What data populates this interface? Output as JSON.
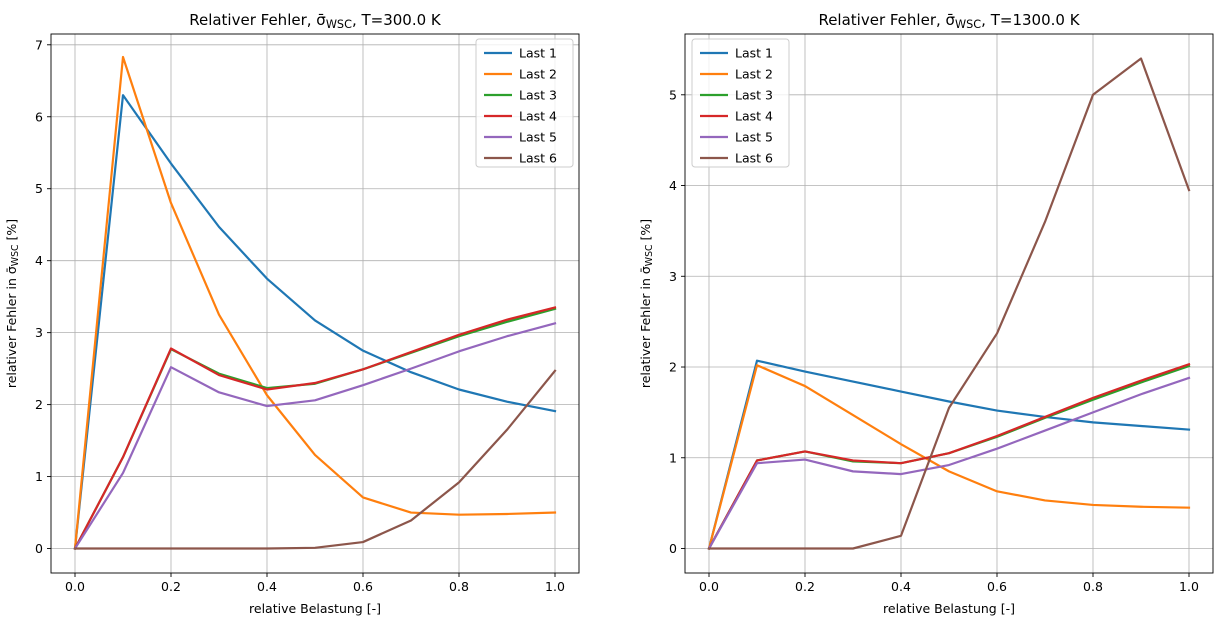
{
  "chart_data": [
    {
      "type": "line",
      "title": "Relativer Fehler, σ̄WSC, T=300.0 K",
      "title_parts": {
        "prefix": "Relativer Fehler, ",
        "symbol": "σ̄",
        "subscript": "WSC",
        "suffix": ", T=300.0 K"
      },
      "xlabel": "relative Belastung [-]",
      "ylabel": "relativer Fehler in σ̄WSC [%]",
      "ylabel_parts": {
        "prefix": "relativer Fehler in ",
        "symbol": "σ̄",
        "subscript": "WSC",
        "suffix": " [%]"
      },
      "x": [
        0.0,
        0.1,
        0.2,
        0.3,
        0.4,
        0.5,
        0.6,
        0.7,
        0.8,
        0.9,
        1.0
      ],
      "xlim": [
        -0.05,
        1.05
      ],
      "ylim": [
        -0.34,
        7.15
      ],
      "xticks": [
        0.0,
        0.2,
        0.4,
        0.6,
        0.8,
        1.0
      ],
      "xtick_labels": [
        "0.0",
        "0.2",
        "0.4",
        "0.6",
        "0.8",
        "1.0"
      ],
      "yticks": [
        0,
        1,
        2,
        3,
        4,
        5,
        6,
        7
      ],
      "ytick_labels": [
        "0",
        "1",
        "2",
        "3",
        "4",
        "5",
        "6",
        "7"
      ],
      "grid": true,
      "legend_position": "top-right",
      "series": [
        {
          "name": "Last 1",
          "color": "#1f77b4",
          "values": [
            0,
            6.3,
            5.35,
            4.47,
            3.75,
            3.17,
            2.75,
            2.45,
            2.21,
            2.04,
            1.91
          ]
        },
        {
          "name": "Last 2",
          "color": "#ff7f0e",
          "values": [
            0,
            6.83,
            4.8,
            3.25,
            2.13,
            1.3,
            0.71,
            0.5,
            0.47,
            0.48,
            0.5
          ]
        },
        {
          "name": "Last 3",
          "color": "#2ca02c",
          "values": [
            0,
            1.27,
            2.77,
            2.43,
            2.23,
            2.29,
            2.49,
            2.72,
            2.95,
            3.15,
            3.33
          ]
        },
        {
          "name": "Last 4",
          "color": "#d62728",
          "values": [
            0,
            1.27,
            2.78,
            2.41,
            2.21,
            2.3,
            2.49,
            2.73,
            2.97,
            3.18,
            3.35
          ]
        },
        {
          "name": "Last 5",
          "color": "#9467bd",
          "values": [
            0,
            1.05,
            2.52,
            2.17,
            1.98,
            2.06,
            2.27,
            2.5,
            2.74,
            2.95,
            3.13
          ]
        },
        {
          "name": "Last 6",
          "color": "#8c564b",
          "values": [
            0,
            0,
            0,
            0,
            0,
            0.01,
            0.09,
            0.39,
            0.92,
            1.65,
            2.47
          ]
        }
      ]
    },
    {
      "type": "line",
      "title": "Relativer Fehler, σ̄WSC, T=1300.0 K",
      "title_parts": {
        "prefix": "Relativer Fehler, ",
        "symbol": "σ̄",
        "subscript": "WSC",
        "suffix": ", T=1300.0 K"
      },
      "xlabel": "relative Belastung [-]",
      "ylabel": "relativer Fehler in σ̄WSC [%]",
      "ylabel_parts": {
        "prefix": "relativer Fehler in ",
        "symbol": "σ̄",
        "subscript": "WSC",
        "suffix": " [%]"
      },
      "x": [
        0.0,
        0.1,
        0.2,
        0.3,
        0.4,
        0.5,
        0.6,
        0.7,
        0.8,
        0.9,
        1.0
      ],
      "xlim": [
        -0.05,
        1.05
      ],
      "ylim": [
        -0.27,
        5.67
      ],
      "xticks": [
        0.0,
        0.2,
        0.4,
        0.6,
        0.8,
        1.0
      ],
      "xtick_labels": [
        "0.0",
        "0.2",
        "0.4",
        "0.6",
        "0.8",
        "1.0"
      ],
      "yticks": [
        0,
        1,
        2,
        3,
        4,
        5
      ],
      "ytick_labels": [
        "0",
        "1",
        "2",
        "3",
        "4",
        "5"
      ],
      "grid": true,
      "legend_position": "top-left",
      "series": [
        {
          "name": "Last 1",
          "color": "#1f77b4",
          "values": [
            0,
            2.07,
            1.95,
            1.84,
            1.73,
            1.62,
            1.52,
            1.45,
            1.39,
            1.35,
            1.31
          ]
        },
        {
          "name": "Last 2",
          "color": "#ff7f0e",
          "values": [
            0,
            2.02,
            1.79,
            1.47,
            1.15,
            0.85,
            0.63,
            0.53,
            0.48,
            0.46,
            0.45
          ]
        },
        {
          "name": "Last 3",
          "color": "#2ca02c",
          "values": [
            0,
            0.97,
            1.07,
            0.96,
            0.94,
            1.05,
            1.23,
            1.44,
            1.64,
            1.83,
            2.01
          ]
        },
        {
          "name": "Last 4",
          "color": "#d62728",
          "values": [
            0,
            0.97,
            1.07,
            0.97,
            0.94,
            1.05,
            1.24,
            1.45,
            1.66,
            1.85,
            2.03
          ]
        },
        {
          "name": "Last 5",
          "color": "#9467bd",
          "values": [
            0,
            0.94,
            0.98,
            0.85,
            0.82,
            0.92,
            1.1,
            1.3,
            1.5,
            1.7,
            1.88
          ]
        },
        {
          "name": "Last 6",
          "color": "#8c564b",
          "values": [
            0,
            0,
            0,
            0,
            0.14,
            1.55,
            2.37,
            3.6,
            5.0,
            5.4,
            3.95
          ]
        }
      ]
    }
  ]
}
